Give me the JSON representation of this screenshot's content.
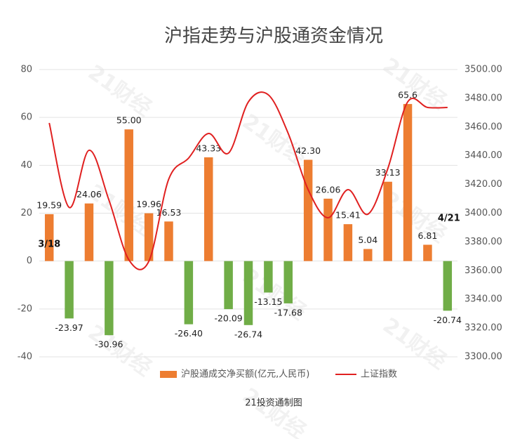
{
  "chart_data": {
    "type": "bar_line",
    "title": "沪指走势与沪股通资金情况",
    "footer": "21投资通制图",
    "watermark": "21财经",
    "categories": [
      "3/18",
      null,
      null,
      null,
      null,
      null,
      null,
      null,
      null,
      null,
      null,
      null,
      null,
      null,
      null,
      null,
      null,
      null,
      null,
      null,
      "4/21"
    ],
    "series": [
      {
        "name": "沪股通成交净买额(亿元,人民币)",
        "color": "#ed7d31",
        "negative_color": "#70ad47",
        "chart": "bar",
        "values": [
          19.59,
          -23.97,
          24.06,
          -30.96,
          55.0,
          19.96,
          16.53,
          -26.4,
          43.33,
          -20.09,
          -26.74,
          -13.15,
          -17.68,
          42.3,
          26.06,
          15.41,
          5.04,
          33.13,
          65.6,
          6.81,
          -20.74
        ],
        "value_labels": [
          "19.59",
          "-23.97",
          "24.06",
          "-30.96",
          "55.00",
          "19.96",
          "16.53",
          "-26.40",
          "43.33",
          "-20.09",
          "-26.74",
          "-13.15",
          "-17.68",
          "42.30",
          "26.06",
          "15.41",
          "5.04",
          "33.13",
          "65.6",
          "6.81",
          "-20.74"
        ]
      },
      {
        "name": "上证指数",
        "color": "#e02020",
        "chart": "line",
        "axis": "y2",
        "values": [
          3462.8,
          3404,
          3443.8,
          3409,
          3367.5,
          3366.5,
          3423.7,
          3438.4,
          3455.5,
          3441.8,
          3477.5,
          3482.4,
          3455.5,
          3416.4,
          3396.8,
          3416.4,
          3399.3,
          3431,
          3477.5,
          3473.6,
          3473.6
        ]
      }
    ],
    "ylim": [
      -40,
      80
    ],
    "yticks": [
      -40,
      -20,
      0,
      20,
      40,
      60,
      80
    ],
    "y2lim": [
      3300,
      3500
    ],
    "y2ticks": [
      {
        "value": 3300,
        "label": "3300.00"
      },
      {
        "value": 3320,
        "label": "3320.00"
      },
      {
        "value": 3340,
        "label": "3340.00"
      },
      {
        "value": 3360,
        "label": "3360.00"
      },
      {
        "value": 3380,
        "label": "3380.00"
      },
      {
        "value": 3400,
        "label": "3400.00"
      },
      {
        "value": 3420,
        "label": "3420.00"
      },
      {
        "value": 3440,
        "label": "3440.00"
      },
      {
        "value": 3460,
        "label": "3460.00"
      },
      {
        "value": 3480,
        "label": "3480.00"
      },
      {
        "value": 3500,
        "label": "3500.00"
      }
    ],
    "grid": true,
    "legend": "bottom"
  }
}
